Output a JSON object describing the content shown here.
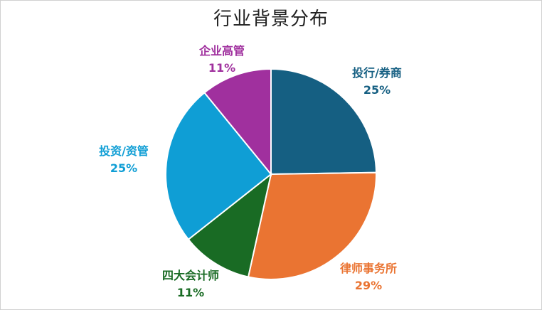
{
  "chart_data": {
    "type": "pie",
    "title": "行业背景分布",
    "series": [
      {
        "slices": [
          {
            "label": "投行/券商",
            "value": 25,
            "display": "25%",
            "color": "#155f82"
          },
          {
            "label": "律师事务所",
            "value": 29,
            "display": "29%",
            "color": "#ea7432"
          },
          {
            "label": "四大会计师",
            "value": 11,
            "display": "11%",
            "color": "#196b24"
          },
          {
            "label": "投资/资管",
            "value": 25,
            "display": "25%",
            "color": "#0f9ed5"
          },
          {
            "label": "企业高管",
            "value": 11,
            "display": "11%",
            "color": "#a0309e"
          }
        ]
      }
    ],
    "start_angle_deg": 0,
    "direction": "clockwise",
    "legend": "none"
  }
}
